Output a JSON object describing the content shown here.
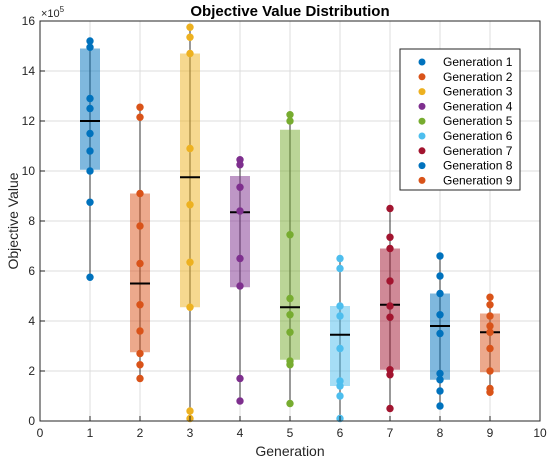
{
  "chart_data": {
    "type": "box",
    "title": "Objective Value Distribution",
    "xlabel": "Generation",
    "ylabel": "Objective Value",
    "y_exponent_label": "×10",
    "y_exponent_power": "5",
    "xlim": [
      0,
      10
    ],
    "ylim": [
      0,
      16
    ],
    "x_ticks": [
      "0",
      "1",
      "2",
      "3",
      "4",
      "5",
      "6",
      "7",
      "8",
      "9",
      "10"
    ],
    "y_ticks": [
      "0",
      "2",
      "4",
      "6",
      "8",
      "10",
      "12",
      "14",
      "16"
    ],
    "grid": true,
    "legend_position": "top-right",
    "series": [
      {
        "name": "Generation 1",
        "x": 1,
        "color": "#0072BD",
        "box": {
          "q1": 10.05,
          "median": 12.0,
          "q3": 14.9
        },
        "whisker": {
          "low": 5.75,
          "high": 15.2
        },
        "points": [
          15.2,
          14.95,
          12.9,
          12.5,
          11.5,
          10.8,
          10.0,
          8.75,
          5.75
        ]
      },
      {
        "name": "Generation 2",
        "x": 2,
        "color": "#D95319",
        "box": {
          "q1": 2.75,
          "median": 5.5,
          "q3": 9.1
        },
        "whisker": {
          "low": 1.7,
          "high": 12.55
        },
        "points": [
          12.55,
          12.15,
          9.1,
          7.8,
          6.3,
          4.65,
          3.6,
          2.7,
          2.25,
          1.7
        ]
      },
      {
        "name": "Generation 3",
        "x": 3,
        "color": "#EDB120",
        "box": {
          "q1": 4.55,
          "median": 9.75,
          "q3": 14.7
        },
        "whisker": {
          "low": 0.1,
          "high": 15.75
        },
        "points": [
          15.75,
          15.35,
          14.7,
          10.9,
          8.65,
          6.35,
          4.55,
          0.4,
          0.1
        ]
      },
      {
        "name": "Generation 4",
        "x": 4,
        "color": "#7E2F8E",
        "box": {
          "q1": 5.35,
          "median": 8.35,
          "q3": 9.8
        },
        "whisker": {
          "low": 0.8,
          "high": 10.45
        },
        "points": [
          10.45,
          10.25,
          9.35,
          8.4,
          6.5,
          5.4,
          1.7,
          0.8
        ]
      },
      {
        "name": "Generation 5",
        "x": 5,
        "color": "#77AC30",
        "box": {
          "q1": 2.45,
          "median": 4.55,
          "q3": 11.65
        },
        "whisker": {
          "low": 0.7,
          "high": 12.25
        },
        "points": [
          12.25,
          12.0,
          7.45,
          4.9,
          4.25,
          3.55,
          2.4,
          2.25,
          0.7
        ]
      },
      {
        "name": "Generation 6",
        "x": 6,
        "color": "#4DBEEE",
        "box": {
          "q1": 1.4,
          "median": 3.45,
          "q3": 4.6
        },
        "whisker": {
          "low": 0.1,
          "high": 6.5
        },
        "points": [
          6.5,
          6.1,
          4.6,
          4.2,
          2.9,
          1.6,
          1.4,
          1.0,
          0.1
        ]
      },
      {
        "name": "Generation 7",
        "x": 7,
        "color": "#A2142F",
        "box": {
          "q1": 2.05,
          "median": 4.65,
          "q3": 6.9
        },
        "whisker": {
          "low": 0.5,
          "high": 8.5
        },
        "points": [
          8.5,
          7.35,
          6.9,
          5.6,
          4.6,
          4.15,
          2.05,
          1.85,
          0.5
        ]
      },
      {
        "name": "Generation 8",
        "x": 8,
        "color": "#0072BD",
        "box": {
          "q1": 1.65,
          "median": 3.8,
          "q3": 5.1
        },
        "whisker": {
          "low": 0.6,
          "high": 6.6
        },
        "points": [
          6.6,
          5.8,
          5.1,
          4.25,
          3.5,
          1.9,
          1.65,
          1.2,
          0.6
        ]
      },
      {
        "name": "Generation 9",
        "x": 9,
        "color": "#D95319",
        "box": {
          "q1": 1.95,
          "median": 3.55,
          "q3": 4.3
        },
        "whisker": {
          "low": 1.15,
          "high": 4.95
        },
        "points": [
          4.95,
          4.65,
          4.2,
          3.8,
          3.55,
          2.9,
          2.0,
          1.3,
          1.15
        ]
      }
    ]
  }
}
